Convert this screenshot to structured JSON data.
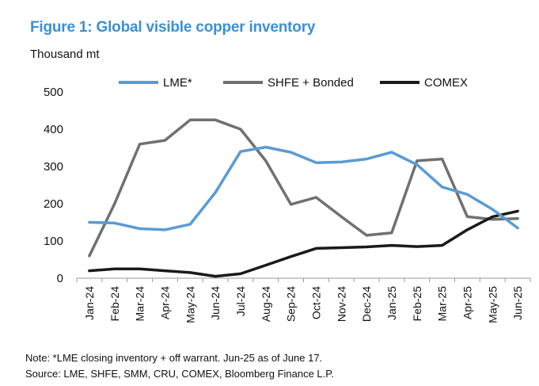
{
  "figure": {
    "title": "Figure 1: Global visible copper inventory",
    "unit_label": "Thousand mt",
    "note": "Note: *LME closing inventory + off warrant. Jun-25 as of June 17.",
    "source": "Source: LME, SHFE, SMM, CRU, COMEX, Bloomberg Finance L.P."
  },
  "chart_data": {
    "type": "line",
    "title": "Figure 1: Global visible copper inventory",
    "ylabel": "Thousand mt",
    "xlabel": "",
    "ylim": [
      0,
      500
    ],
    "yticks": [
      0,
      100,
      200,
      300,
      400,
      500
    ],
    "legend_position": "top",
    "grid": false,
    "categories": [
      "Jan-24",
      "Feb-24",
      "Mar-24",
      "Apr-24",
      "May-24",
      "Jun-24",
      "Jul-24",
      "Aug-24",
      "Sep-24",
      "Oct-24",
      "Nov-24",
      "Dec-24",
      "Jan-25",
      "Feb-25",
      "Mar-25",
      "Apr-25",
      "May-25",
      "Jun-25"
    ],
    "series": [
      {
        "name": "LME*",
        "color": "#5b9bd5",
        "values": [
          150,
          148,
          133,
          130,
          145,
          230,
          340,
          352,
          338,
          310,
          312,
          320,
          338,
          305,
          245,
          225,
          185,
          135
        ]
      },
      {
        "name": "SHFE + Bonded",
        "color": "#707070",
        "values": [
          60,
          200,
          360,
          370,
          425,
          425,
          400,
          315,
          198,
          217,
          165,
          115,
          122,
          315,
          320,
          165,
          158,
          160
        ]
      },
      {
        "name": "COMEX",
        "color": "#1a1a1a",
        "values": [
          20,
          25,
          25,
          20,
          15,
          5,
          12,
          35,
          58,
          80,
          82,
          84,
          88,
          85,
          88,
          130,
          165,
          180
        ]
      }
    ]
  }
}
